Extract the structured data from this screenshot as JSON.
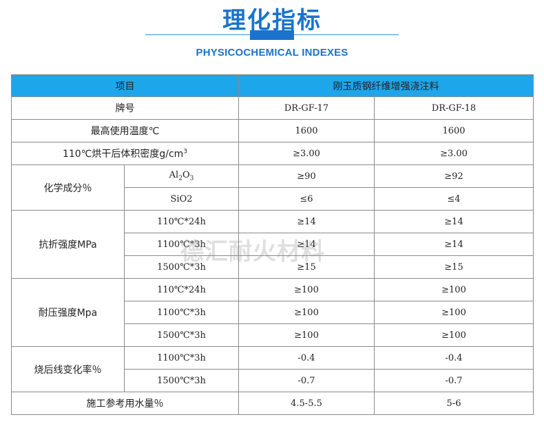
{
  "header": {
    "title": "理化指标",
    "subtitle": "PHYSICOCHEMICAL INDEXES"
  },
  "table": {
    "col_item": "项目",
    "col_product": "刚玉质钢纤维增强浇注料",
    "brand_label": "牌号",
    "brand_a": "DR-GF-17",
    "brand_b": "DR-GF-18",
    "max_temp_label": "最高使用温度℃",
    "max_temp_a": "1600",
    "max_temp_b": "1600",
    "density_label_pre": "110℃烘干后体积密度g/cm",
    "density_label_sup": "3",
    "density_a": "≥3.00",
    "density_b": "≥3.00",
    "chem_label": "化学成分％",
    "al2o3_a_pre": "Al",
    "al2o3_sub1": "2",
    "al2o3_mid": "O",
    "al2o3_sub2": "3",
    "al2o3_val_a": "≥90",
    "al2o3_val_b": "≥92",
    "sio2_label": "SiO2",
    "sio2_val_a": "≤6",
    "sio2_val_b": "≤4",
    "flex_label": "抗折强度MPa",
    "flex_rows": [
      {
        "cond": "110℃*24h",
        "a": "≥14",
        "b": "≥14"
      },
      {
        "cond": "1100℃*3h",
        "a": "≥14",
        "b": "≥14"
      },
      {
        "cond": "1500℃*3h",
        "a": "≥15",
        "b": "≥15"
      }
    ],
    "comp_label": "耐压强度Mpa",
    "comp_rows": [
      {
        "cond": "110℃*24h",
        "a": "≥100",
        "b": "≥100"
      },
      {
        "cond": "1100℃*3h",
        "a": "≥100",
        "b": "≥100"
      },
      {
        "cond": "1500℃*3h",
        "a": "≥100",
        "b": "≥100"
      }
    ],
    "linear_label": "烧后线变化率％",
    "linear_rows": [
      {
        "cond": "1100℃*3h",
        "a": "-0.4",
        "b": "-0.4"
      },
      {
        "cond": "1500℃*3h",
        "a": "-0.7",
        "b": "-0.7"
      }
    ],
    "water_label": "施工参考用水量％",
    "water_a": "4.5-5.5",
    "water_b": "5-6"
  },
  "watermark": "德汇耐火材料"
}
